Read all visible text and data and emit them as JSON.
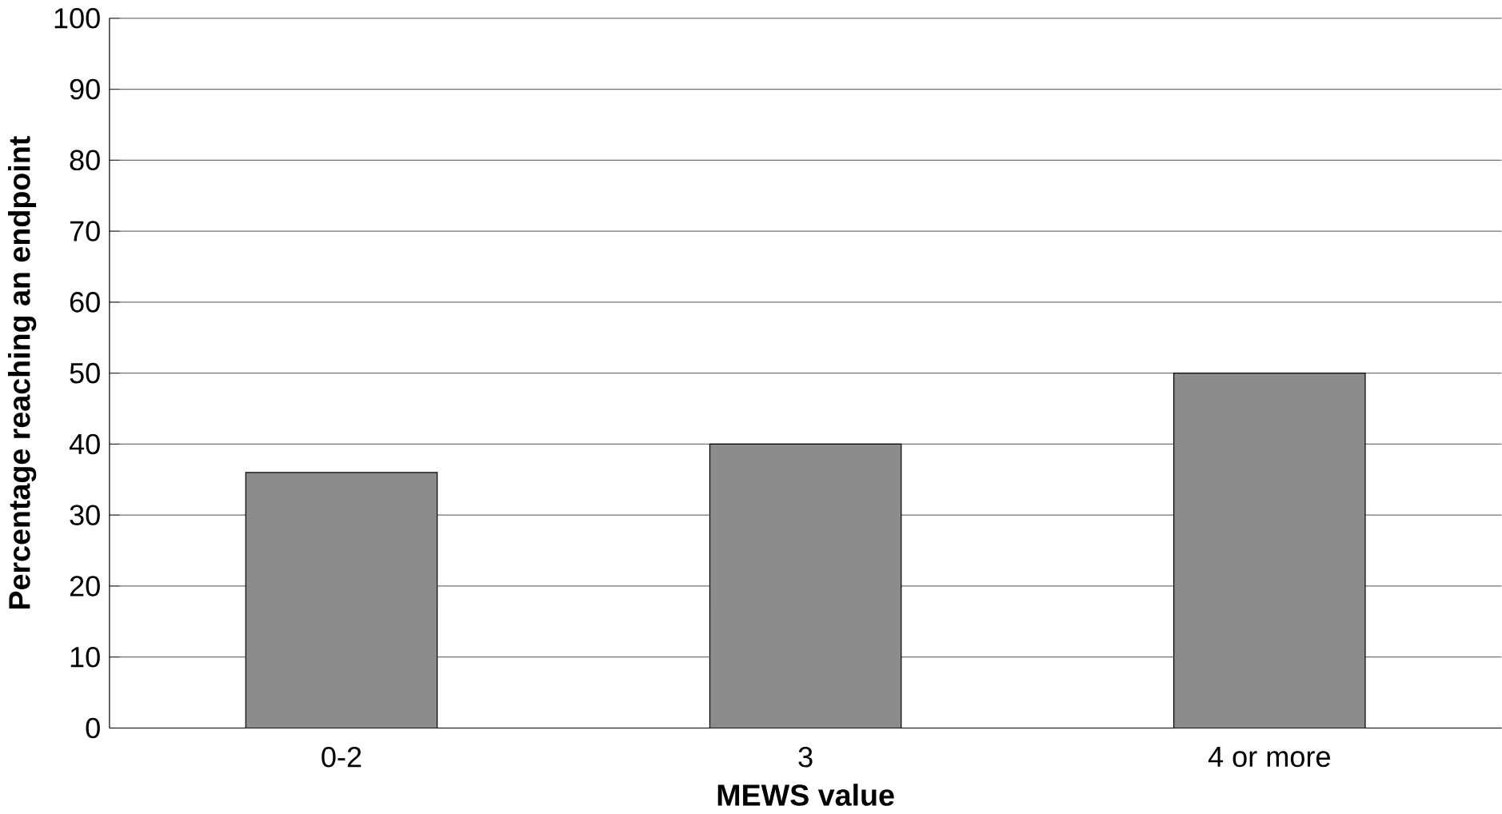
{
  "chart_data": {
    "type": "bar",
    "xlabel": "MEWS value",
    "ylabel": "Percentage reaching an endpoint",
    "categories": [
      "0-2",
      "3",
      "4 or more"
    ],
    "values": [
      36,
      40,
      50
    ],
    "color": "#8c8c8c",
    "ylim": [
      0,
      100
    ],
    "yticks": [
      0,
      10,
      20,
      30,
      40,
      50,
      60,
      70,
      80,
      90,
      100
    ],
    "grid": "y"
  }
}
